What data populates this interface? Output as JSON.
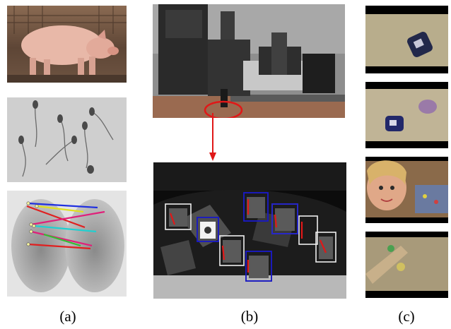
{
  "figure": {
    "captions": {
      "a": "(a)",
      "b": "(b)",
      "c": "(c)"
    },
    "colors": {
      "highlight_red": "#e01818",
      "box_white": "#eeeeee",
      "box_blue": "#1a1acc",
      "pair_lines": [
        "#e0207a",
        "#2030e0",
        "#e0e020",
        "#20d0d0",
        "#e02020",
        "#30c030"
      ]
    }
  }
}
